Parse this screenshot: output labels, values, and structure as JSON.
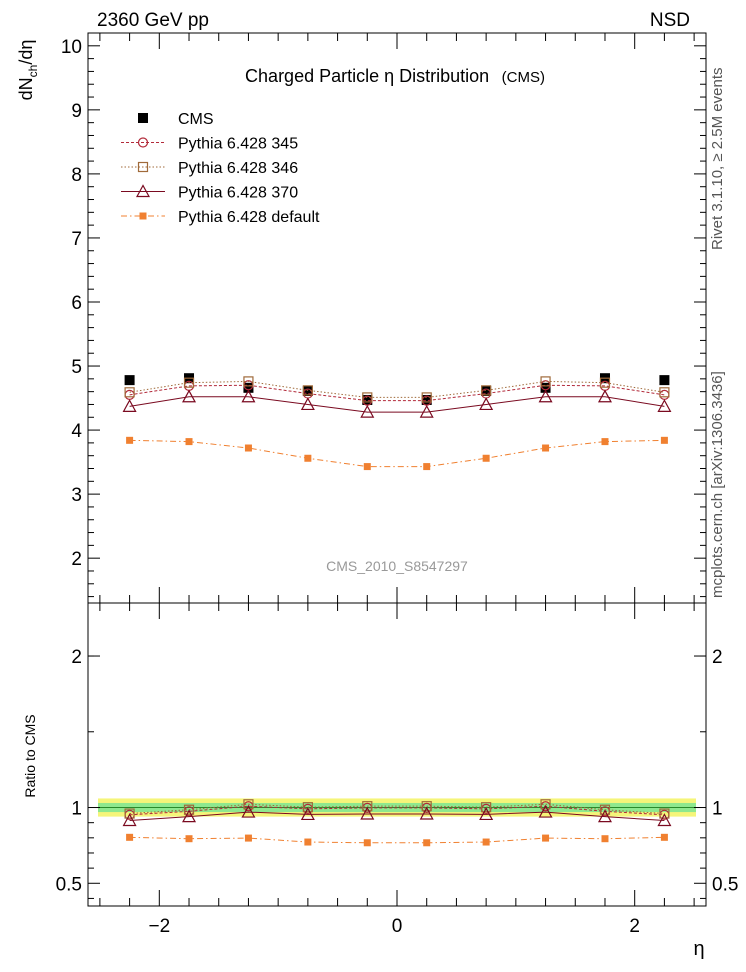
{
  "header": {
    "left": "2360 GeV pp",
    "right": "NSD"
  },
  "side_labels": {
    "rivet": "Rivet 3.1.10, ≥ 2.5M events",
    "mcplots": "mcplots.cern.ch [arXiv:1306.3436]"
  },
  "chart_data": {
    "type": "line",
    "title": "Charged Particle  η Distribution",
    "title_suffix": "(CMS)",
    "analysis_id": "CMS_2010_S8547297",
    "xlabel": "η",
    "ylabel_main": "dN_ch/dη",
    "ylabel_ratio": "Ratio to CMS",
    "xlim": [
      -2.6,
      2.6
    ],
    "ylim_main": [
      1.3,
      10.2
    ],
    "ylim_ratio": [
      0.35,
      2.35
    ],
    "x_ticks": [
      -2,
      0,
      2
    ],
    "y_ticks_main": [
      2,
      3,
      4,
      5,
      6,
      7,
      8,
      9,
      10
    ],
    "y_ticks_ratio": [
      0.5,
      1,
      2
    ],
    "x": [
      -2.25,
      -1.75,
      -1.25,
      -0.75,
      -0.25,
      0.25,
      0.75,
      1.25,
      1.75,
      2.25
    ],
    "legend": [
      {
        "name": "CMS",
        "color": "#000000",
        "marker": "filled-square",
        "line": "none"
      },
      {
        "name": "Pythia 6.428 345",
        "color": "#b22a3a",
        "marker": "open-circle",
        "line": "dashed"
      },
      {
        "name": "Pythia 6.428 346",
        "color": "#a06a3a",
        "marker": "open-square",
        "line": "dotted"
      },
      {
        "name": "Pythia 6.428 370",
        "color": "#7a0a20",
        "marker": "open-triangle",
        "line": "solid"
      },
      {
        "name": "Pythia 6.428 default",
        "color": "#f08030",
        "marker": "filled-square-small",
        "line": "dashdot"
      }
    ],
    "series": [
      {
        "name": "CMS",
        "values": [
          4.78,
          4.81,
          4.66,
          4.61,
          4.47,
          4.47,
          4.61,
          4.66,
          4.81,
          4.78
        ]
      },
      {
        "name": "Pythia 6.428 345",
        "values": [
          4.55,
          4.69,
          4.7,
          4.57,
          4.46,
          4.46,
          4.57,
          4.7,
          4.69,
          4.55
        ]
      },
      {
        "name": "Pythia 6.428 346",
        "values": [
          4.59,
          4.74,
          4.76,
          4.62,
          4.51,
          4.51,
          4.62,
          4.76,
          4.74,
          4.59
        ]
      },
      {
        "name": "Pythia 6.428 370",
        "values": [
          4.37,
          4.52,
          4.52,
          4.4,
          4.28,
          4.28,
          4.4,
          4.52,
          4.52,
          4.37
        ]
      },
      {
        "name": "Pythia 6.428 default",
        "values": [
          3.84,
          3.82,
          3.72,
          3.56,
          3.43,
          3.43,
          3.56,
          3.72,
          3.82,
          3.84
        ]
      }
    ],
    "ratio_band": {
      "inner": [
        0.97,
        1.03
      ],
      "outer": [
        0.94,
        1.06
      ]
    },
    "grid": false
  }
}
